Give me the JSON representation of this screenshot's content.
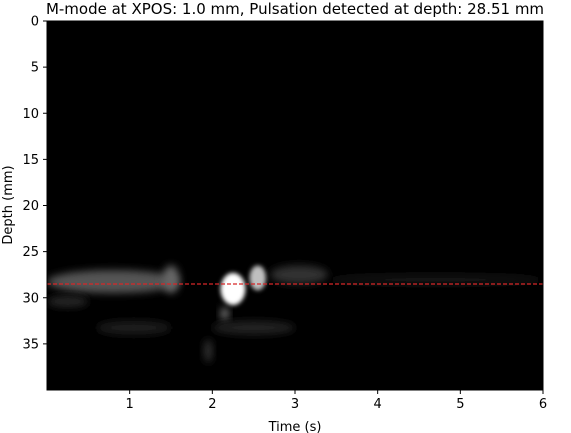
{
  "chart_data": {
    "type": "heatmap",
    "title": "M-mode at XPOS: 1.0 mm, Pulsation detected at depth: 28.51 mm",
    "xlabel": "Time (s)",
    "ylabel": "Depth (mm)",
    "xlim": [
      0,
      6
    ],
    "ylim": [
      40,
      0
    ],
    "x_ticks": [
      1,
      2,
      3,
      4,
      5,
      6
    ],
    "y_ticks": [
      0,
      5,
      10,
      15,
      20,
      25,
      30,
      35
    ],
    "colormap": "gray",
    "background_color": "#000000",
    "pulsation_depth": 28.51,
    "pulsation_line_color": "#d62728",
    "pulsation_line_style": "dashed",
    "intensity_features": [
      {
        "t0": 0.0,
        "t1": 1.6,
        "depth0": 27.0,
        "depth1": 29.5,
        "intensity": 0.33
      },
      {
        "t0": 0.0,
        "t1": 0.5,
        "depth0": 29.8,
        "depth1": 31.0,
        "intensity": 0.15
      },
      {
        "t0": 0.6,
        "t1": 1.5,
        "depth0": 32.5,
        "depth1": 34.0,
        "intensity": 0.12
      },
      {
        "t0": 1.4,
        "t1": 1.6,
        "depth0": 26.5,
        "depth1": 29.5,
        "intensity": 0.4
      },
      {
        "t0": 2.1,
        "t1": 2.4,
        "depth0": 27.3,
        "depth1": 30.8,
        "intensity": 1.0
      },
      {
        "t0": 2.45,
        "t1": 2.65,
        "depth0": 26.5,
        "depth1": 29.2,
        "intensity": 0.75
      },
      {
        "t0": 2.1,
        "t1": 2.2,
        "depth0": 31.0,
        "depth1": 32.5,
        "intensity": 0.45
      },
      {
        "t0": 1.9,
        "t1": 2.0,
        "depth0": 34.5,
        "depth1": 37.0,
        "intensity": 0.2
      },
      {
        "t0": 2.7,
        "t1": 3.4,
        "depth0": 26.5,
        "depth1": 28.5,
        "intensity": 0.2
      },
      {
        "t0": 3.4,
        "t1": 6.0,
        "depth0": 27.5,
        "depth1": 28.6,
        "intensity": 0.08
      },
      {
        "t0": 2.0,
        "t1": 3.0,
        "depth0": 32.5,
        "depth1": 34.0,
        "intensity": 0.13
      }
    ]
  }
}
